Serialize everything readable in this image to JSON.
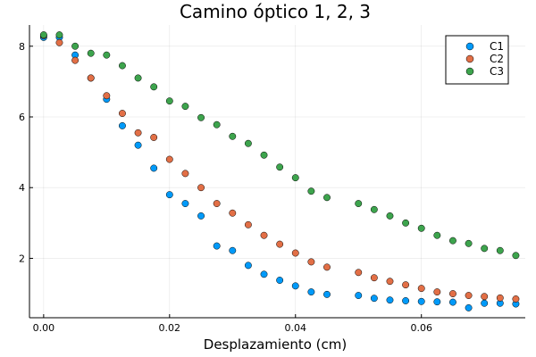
{
  "chart_data": {
    "type": "scatter",
    "title": "Camino óptico 1, 2, 3",
    "xlabel": "Desplazamiento (cm)",
    "ylabel": "",
    "xlim": [
      -0.00225,
      0.0765
    ],
    "ylim": [
      0.32,
      8.6
    ],
    "xticks": [
      0.0,
      0.02,
      0.04,
      0.06
    ],
    "xtick_labels": [
      "0.00",
      "0.02",
      "0.04",
      "0.06"
    ],
    "yticks": [
      2,
      4,
      6,
      8
    ],
    "ytick_labels": [
      "2",
      "4",
      "6",
      "8"
    ],
    "grid": true,
    "legend_position": "top-right",
    "series": [
      {
        "name": "C1",
        "color": "#009af9",
        "x": [
          0.0,
          0.0025,
          0.005,
          0.0075,
          0.01,
          0.0125,
          0.015,
          0.0175,
          0.02,
          0.0225,
          0.025,
          0.0275,
          0.03,
          0.0325,
          0.035,
          0.0375,
          0.04,
          0.0425,
          0.045,
          0.05,
          0.0525,
          0.055,
          0.0575,
          0.06,
          0.0625,
          0.065,
          0.0675,
          0.07,
          0.0725,
          0.075
        ],
        "y": [
          8.25,
          8.25,
          7.75,
          7.1,
          6.5,
          5.75,
          5.2,
          4.55,
          3.8,
          3.55,
          3.2,
          2.35,
          2.22,
          1.8,
          1.55,
          1.38,
          1.22,
          1.05,
          0.98,
          0.95,
          0.87,
          0.82,
          0.8,
          0.78,
          0.77,
          0.76,
          0.6,
          0.73,
          0.73,
          0.71
        ]
      },
      {
        "name": "C2",
        "color": "#e26f46",
        "x": [
          0.0,
          0.0025,
          0.005,
          0.0075,
          0.01,
          0.0125,
          0.015,
          0.0175,
          0.02,
          0.0225,
          0.025,
          0.0275,
          0.03,
          0.0325,
          0.035,
          0.0375,
          0.04,
          0.0425,
          0.045,
          0.05,
          0.0525,
          0.055,
          0.0575,
          0.06,
          0.0625,
          0.065,
          0.0675,
          0.07,
          0.0725,
          0.075
        ],
        "y": [
          8.3,
          8.1,
          7.6,
          7.1,
          6.6,
          6.1,
          5.55,
          5.42,
          4.8,
          4.4,
          4.0,
          3.55,
          3.28,
          2.95,
          2.65,
          2.4,
          2.15,
          1.9,
          1.75,
          1.6,
          1.45,
          1.35,
          1.25,
          1.15,
          1.05,
          1.0,
          0.95,
          0.92,
          0.88,
          0.85
        ]
      },
      {
        "name": "C3",
        "color": "#3da44d",
        "x": [
          0.0,
          0.0025,
          0.005,
          0.0075,
          0.01,
          0.0125,
          0.015,
          0.0175,
          0.02,
          0.0225,
          0.025,
          0.0275,
          0.03,
          0.0325,
          0.035,
          0.0375,
          0.04,
          0.0425,
          0.045,
          0.05,
          0.0525,
          0.055,
          0.0575,
          0.06,
          0.0625,
          0.065,
          0.0675,
          0.07,
          0.0725,
          0.075
        ],
        "y": [
          8.32,
          8.32,
          8.0,
          7.8,
          7.75,
          7.45,
          7.1,
          6.85,
          6.45,
          6.3,
          5.98,
          5.78,
          5.45,
          5.25,
          4.92,
          4.58,
          4.28,
          3.9,
          3.72,
          3.55,
          3.38,
          3.2,
          3.0,
          2.85,
          2.65,
          2.5,
          2.42,
          2.28,
          2.22,
          2.08
        ]
      }
    ]
  }
}
